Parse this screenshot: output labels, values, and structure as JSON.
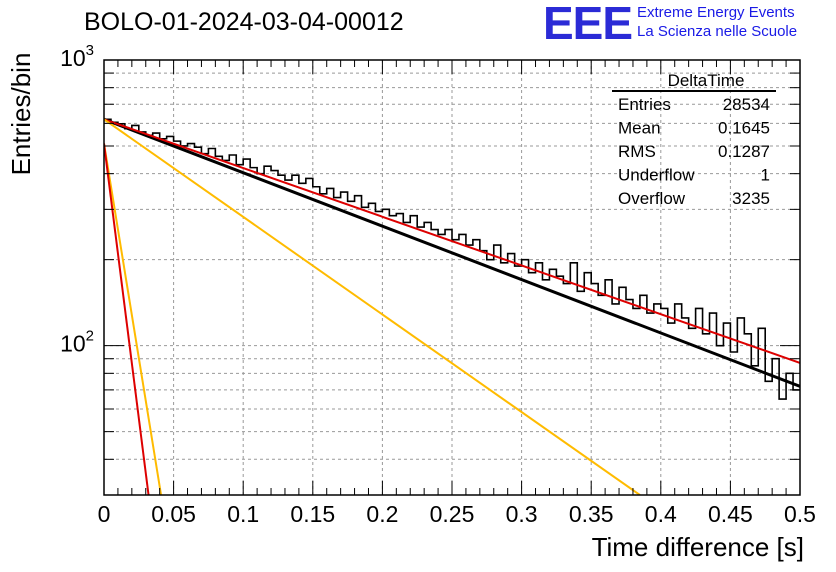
{
  "header": {
    "run_title": "BOLO-01-2024-03-04-00012",
    "logo_text": "EEE",
    "logo_line1": "Extreme Energy Events",
    "logo_line2": "La Scienza nelle Scuole"
  },
  "stats": {
    "title": "DeltaTime",
    "rows": [
      {
        "label": "Entries",
        "value": "28534"
      },
      {
        "label": "Mean",
        "value": "0.1645"
      },
      {
        "label": "RMS",
        "value": "0.1287"
      },
      {
        "label": "Underflow",
        "value": "1"
      },
      {
        "label": "Overflow",
        "value": "3235"
      }
    ]
  },
  "chart_data": {
    "type": "line",
    "title": "BOLO-01-2024-03-04-00012",
    "xlabel": "Time difference [s]",
    "ylabel": "Entries/bin",
    "xlim": [
      0,
      0.5
    ],
    "ylim": [
      30,
      1000
    ],
    "yscale": "log",
    "grid": true,
    "x_ticks": [
      "0",
      "0.05",
      "0.1",
      "0.15",
      "0.2",
      "0.25",
      "0.3",
      "0.35",
      "0.4",
      "0.45",
      "0.5"
    ],
    "y_ticks": [
      {
        "base": "10",
        "exp": "2",
        "value": 100
      },
      {
        "base": "10",
        "exp": "3",
        "value": 1000
      }
    ],
    "histogram": {
      "bin_width": 0.005,
      "values": [
        620,
        605,
        598,
        575,
        590,
        560,
        545,
        555,
        530,
        540,
        520,
        500,
        510,
        495,
        470,
        490,
        460,
        445,
        465,
        430,
        450,
        420,
        400,
        425,
        410,
        395,
        380,
        395,
        370,
        385,
        360,
        340,
        355,
        330,
        345,
        320,
        335,
        305,
        315,
        295,
        300,
        285,
        290,
        270,
        285,
        260,
        270,
        255,
        245,
        255,
        235,
        245,
        225,
        235,
        215,
        200,
        225,
        195,
        210,
        190,
        200,
        180,
        195,
        170,
        185,
        175,
        165,
        195,
        155,
        180,
        165,
        150,
        170,
        140,
        160,
        145,
        135,
        150,
        130,
        140,
        135,
        120,
        140,
        125,
        115,
        135,
        110,
        130,
        100,
        120,
        95,
        125,
        110,
        85,
        115,
        75,
        90,
        65,
        80,
        70
      ]
    },
    "series": [
      {
        "name": "",
        "color": "#000000",
        "x": [
          0,
          0.5
        ],
        "y": [
          620,
          72
        ]
      },
      {
        "name": "",
        "color": "#dd0000",
        "x": [
          0,
          0.5
        ],
        "y": [
          620,
          87
        ]
      },
      {
        "name": "",
        "color": "#ffbb00",
        "x": [
          0,
          0.385
        ],
        "y": [
          620,
          30
        ]
      },
      {
        "name": "",
        "color": "#ffbb00",
        "x": [
          0,
          0.041
        ],
        "y": [
          510,
          30
        ]
      },
      {
        "name": "",
        "color": "#dd0000",
        "x": [
          0,
          0.032
        ],
        "y": [
          510,
          30
        ]
      }
    ]
  }
}
